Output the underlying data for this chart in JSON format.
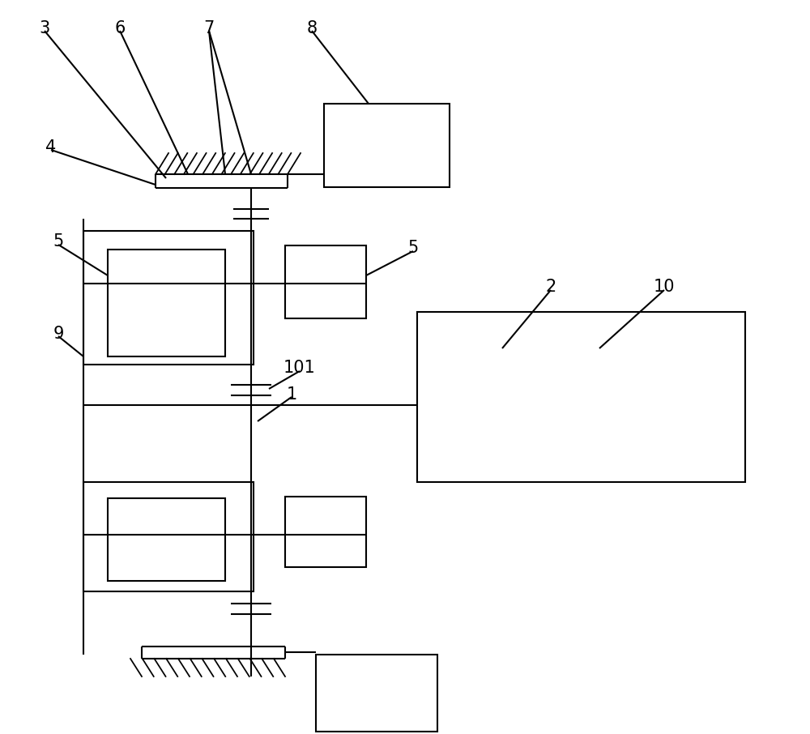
{
  "bg_color": "#ffffff",
  "line_color": "#000000",
  "line_width": 1.5,
  "fig_width": 10.0,
  "fig_height": 9.06,
  "label_fontsize": 15
}
